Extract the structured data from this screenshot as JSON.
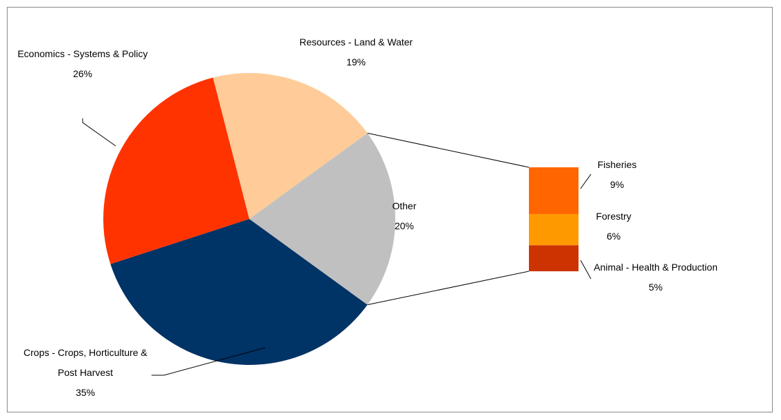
{
  "chart_data": {
    "type": "pie",
    "categories": [
      "Crops - Crops, Horticulture & Post Harvest",
      "Economics - Systems & Policy",
      "Resources - Land & Water",
      "Other"
    ],
    "values": [
      35,
      26,
      19,
      20
    ],
    "value_labels": [
      "35%",
      "26%",
      "19%",
      "20%"
    ],
    "colors": [
      "#003366",
      "#FF3300",
      "#FFCC99",
      "#C0C0C0"
    ],
    "breakout": {
      "categories": [
        "Fisheries",
        "Forestry",
        "Animal - Health & Production"
      ],
      "values": [
        9,
        6,
        5
      ],
      "value_labels": [
        "9%",
        "6%",
        "5%"
      ],
      "colors": [
        "#FF6600",
        "#FF9900",
        "#CC3300"
      ]
    }
  }
}
